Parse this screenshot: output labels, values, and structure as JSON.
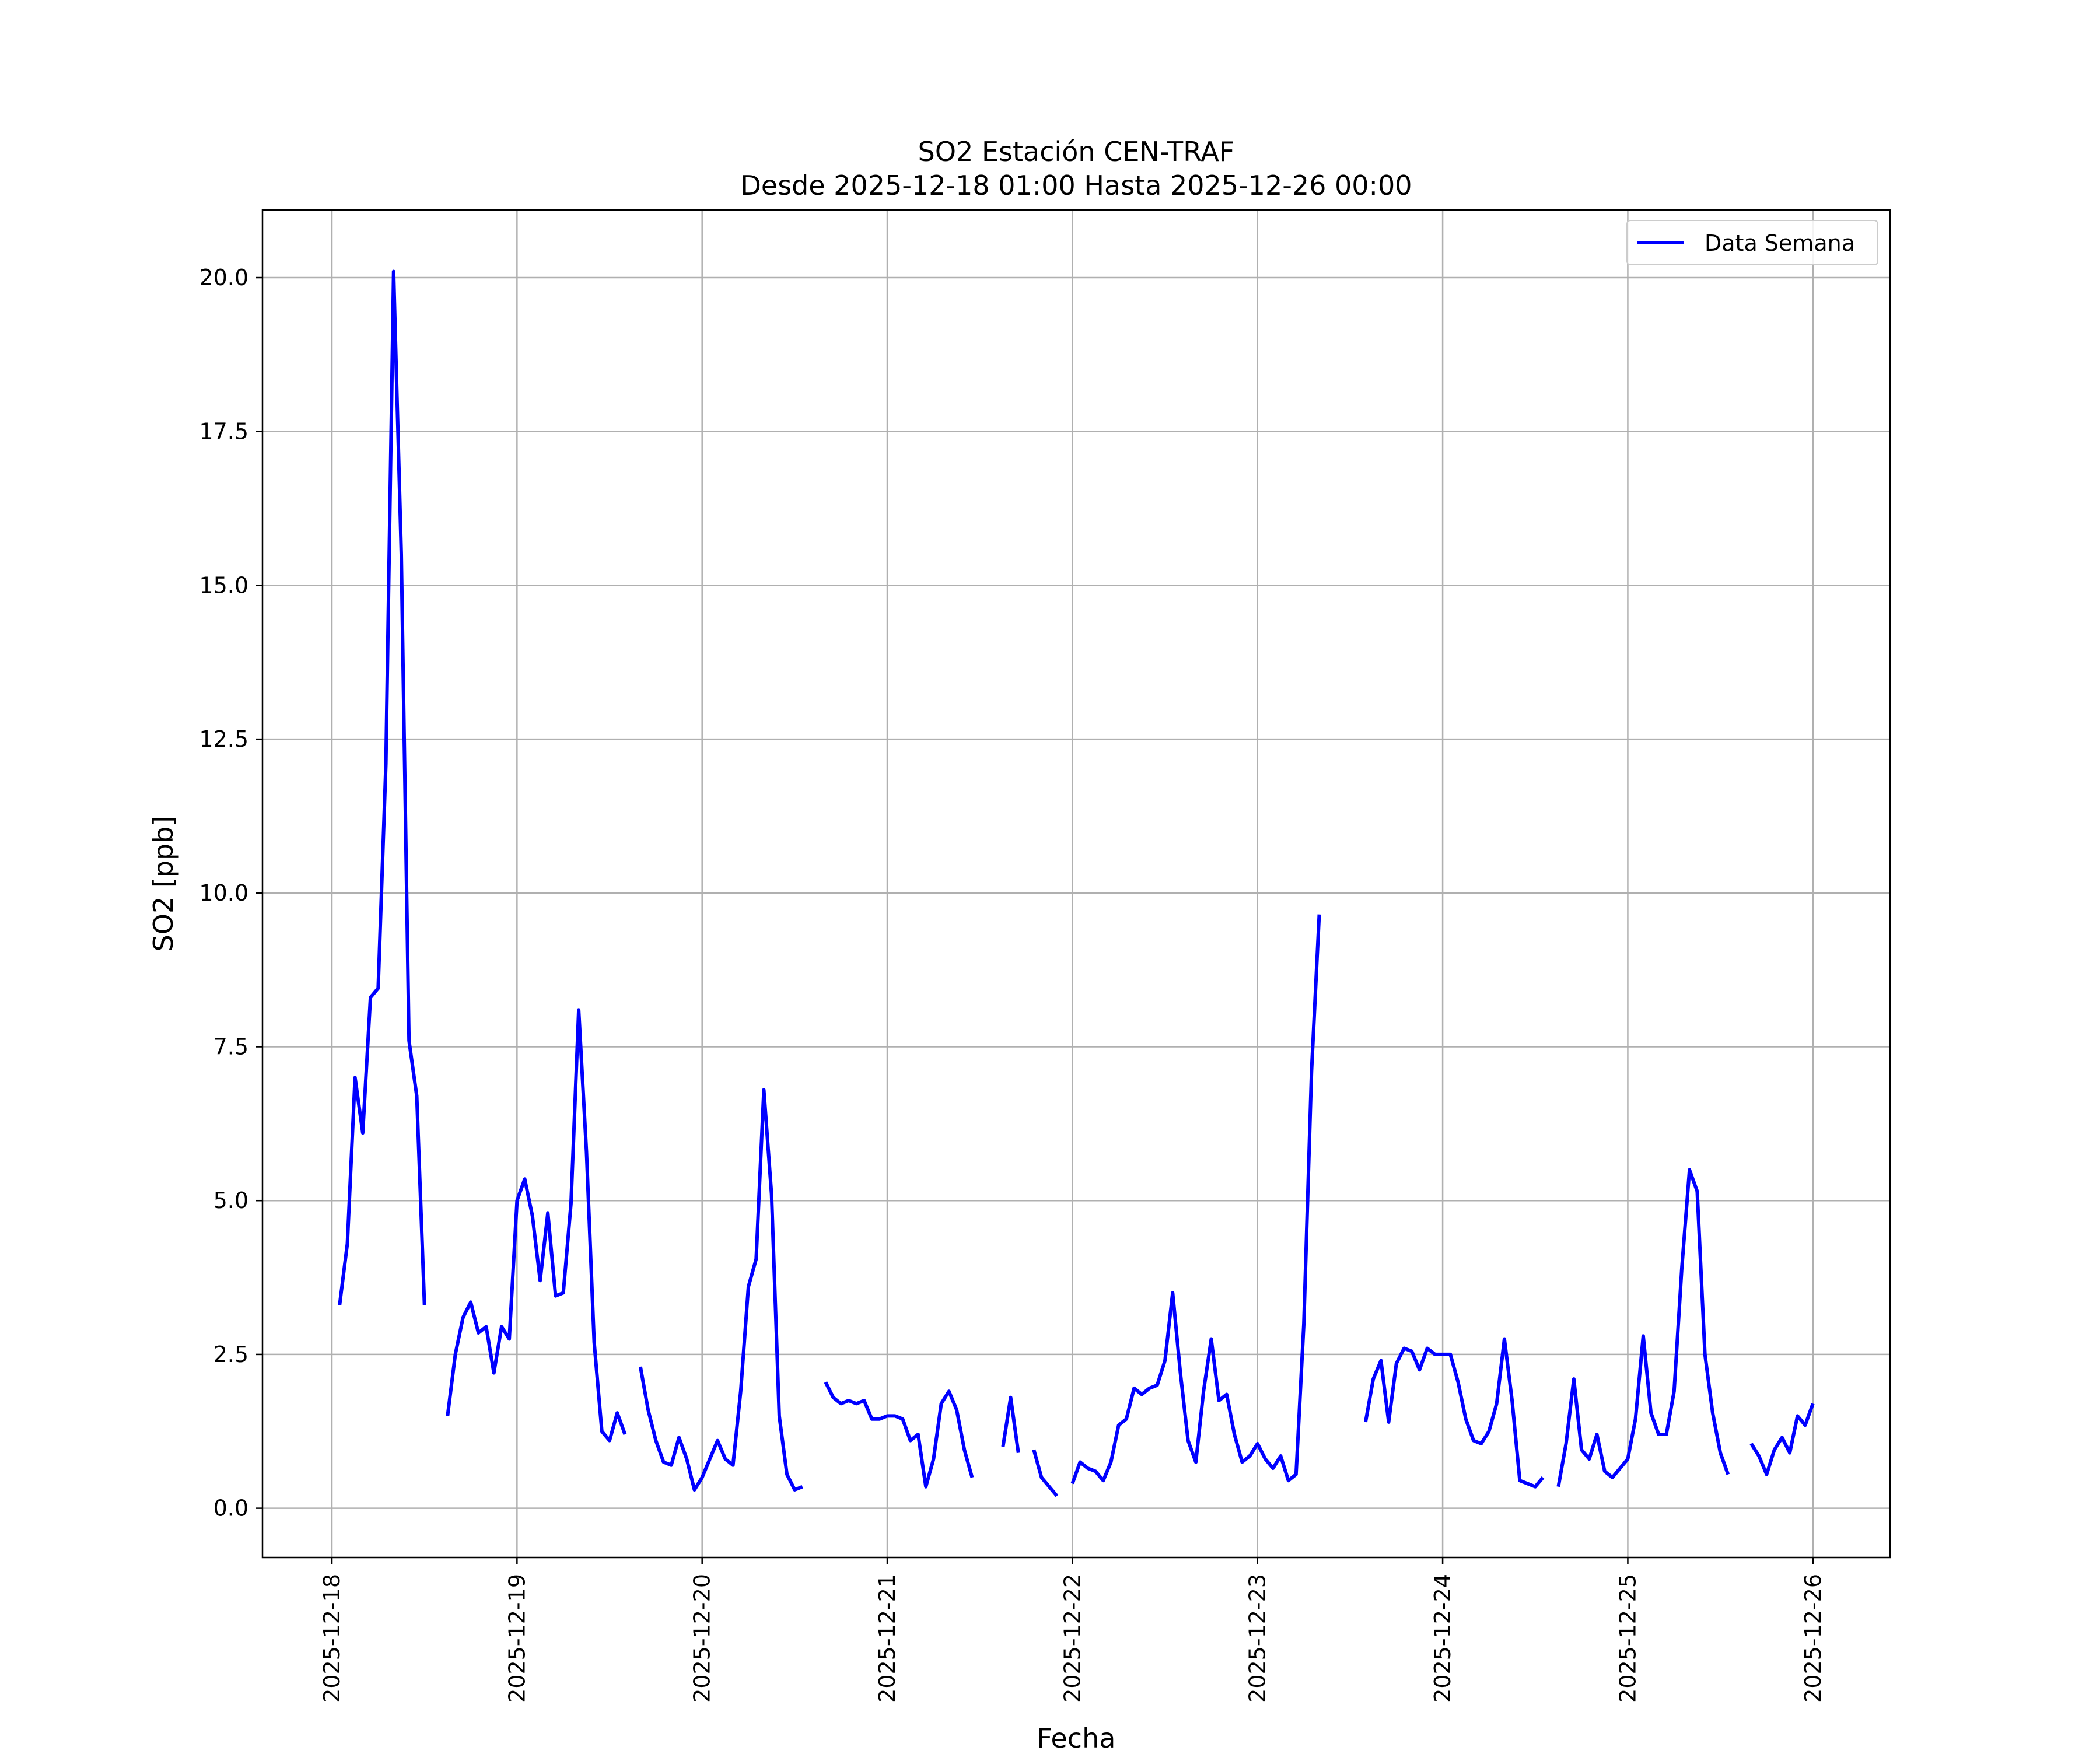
{
  "chart_data": {
    "type": "line",
    "title": "SO2 Estación CEN-TRAF",
    "subtitle": "Desde 2025-12-18 01:00 Hasta 2025-12-26 00:00",
    "xlabel": "Fecha",
    "ylabel": "SO2 [ppb]",
    "ylim": [
      -0.8,
      21.1
    ],
    "xlim": [
      "2025-12-17 15:00",
      "2025-12-26 10:00"
    ],
    "yticks": [
      "0.0",
      "2.5",
      "5.0",
      "7.5",
      "10.0",
      "12.5",
      "15.0",
      "17.5",
      "20.0"
    ],
    "xticks": [
      "2025-12-18",
      "2025-12-19",
      "2025-12-20",
      "2025-12-21",
      "2025-12-22",
      "2025-12-23",
      "2025-12-24",
      "2025-12-25",
      "2025-12-26"
    ],
    "grid": true,
    "legend_position": "upper right",
    "colors": {
      "line": "#0000ff",
      "grid": "#b0b0b0"
    },
    "series": [
      {
        "name": "Data Semana",
        "segments": [
          [
            [
              "2025-12-18 01:00",
              3.3
            ],
            [
              "2025-12-18 02:00",
              4.3
            ],
            [
              "2025-12-18 03:00",
              7.0
            ],
            [
              "2025-12-18 04:00",
              6.1
            ],
            [
              "2025-12-18 05:00",
              8.3
            ],
            [
              "2025-12-18 06:00",
              8.45
            ],
            [
              "2025-12-18 07:00",
              12.1
            ],
            [
              "2025-12-18 08:00",
              20.1
            ],
            [
              "2025-12-18 09:00",
              15.5
            ],
            [
              "2025-12-18 10:00",
              7.6
            ],
            [
              "2025-12-18 11:00",
              6.7
            ],
            [
              "2025-12-18 12:00",
              3.3
            ]
          ],
          [
            [
              "2025-12-18 15:00",
              1.5
            ],
            [
              "2025-12-18 16:00",
              2.5
            ],
            [
              "2025-12-18 17:00",
              3.1
            ],
            [
              "2025-12-18 18:00",
              3.35
            ],
            [
              "2025-12-18 19:00",
              2.85
            ],
            [
              "2025-12-18 20:00",
              2.95
            ],
            [
              "2025-12-18 21:00",
              2.2
            ],
            [
              "2025-12-18 22:00",
              2.95
            ],
            [
              "2025-12-18 23:00",
              2.75
            ],
            [
              "2025-12-19 00:00",
              5.0
            ],
            [
              "2025-12-19 01:00",
              5.35
            ],
            [
              "2025-12-19 02:00",
              4.75
            ],
            [
              "2025-12-19 03:00",
              3.7
            ],
            [
              "2025-12-19 04:00",
              4.8
            ],
            [
              "2025-12-19 05:00",
              3.45
            ],
            [
              "2025-12-19 06:00",
              3.5
            ],
            [
              "2025-12-19 07:00",
              4.95
            ],
            [
              "2025-12-19 08:00",
              8.1
            ],
            [
              "2025-12-19 09:00",
              5.8
            ],
            [
              "2025-12-19 10:00",
              2.7
            ],
            [
              "2025-12-19 11:00",
              1.25
            ],
            [
              "2025-12-19 12:00",
              1.1
            ],
            [
              "2025-12-19 13:00",
              1.55
            ],
            [
              "2025-12-19 14:00",
              1.2
            ]
          ],
          [
            [
              "2025-12-19 16:00",
              2.3
            ],
            [
              "2025-12-19 17:00",
              1.6
            ],
            [
              "2025-12-19 18:00",
              1.1
            ],
            [
              "2025-12-19 19:00",
              0.75
            ],
            [
              "2025-12-19 20:00",
              0.7
            ],
            [
              "2025-12-19 21:00",
              1.15
            ],
            [
              "2025-12-19 22:00",
              0.8
            ],
            [
              "2025-12-19 23:00",
              0.3
            ],
            [
              "2025-12-20 00:00",
              0.5
            ],
            [
              "2025-12-20 01:00",
              0.8
            ],
            [
              "2025-12-20 02:00",
              1.1
            ],
            [
              "2025-12-20 03:00",
              0.8
            ],
            [
              "2025-12-20 04:00",
              0.7
            ],
            [
              "2025-12-20 05:00",
              1.9
            ],
            [
              "2025-12-20 06:00",
              3.6
            ],
            [
              "2025-12-20 07:00",
              4.05
            ],
            [
              "2025-12-20 08:00",
              6.8
            ],
            [
              "2025-12-20 09:00",
              5.1
            ],
            [
              "2025-12-20 10:00",
              1.5
            ],
            [
              "2025-12-20 11:00",
              0.55
            ],
            [
              "2025-12-20 12:00",
              0.3
            ],
            [
              "2025-12-20 13:00",
              0.35
            ]
          ],
          [
            [
              "2025-12-20 16:00",
              2.05
            ],
            [
              "2025-12-20 17:00",
              1.8
            ],
            [
              "2025-12-20 18:00",
              1.7
            ],
            [
              "2025-12-20 19:00",
              1.75
            ],
            [
              "2025-12-20 20:00",
              1.7
            ],
            [
              "2025-12-20 21:00",
              1.75
            ],
            [
              "2025-12-20 22:00",
              1.45
            ],
            [
              "2025-12-20 23:00",
              1.45
            ],
            [
              "2025-12-21 00:00",
              1.5
            ],
            [
              "2025-12-21 01:00",
              1.5
            ],
            [
              "2025-12-21 02:00",
              1.45
            ],
            [
              "2025-12-21 03:00",
              1.1
            ],
            [
              "2025-12-21 04:00",
              1.2
            ],
            [
              "2025-12-21 05:00",
              0.35
            ],
            [
              "2025-12-21 06:00",
              0.8
            ],
            [
              "2025-12-21 07:00",
              1.7
            ],
            [
              "2025-12-21 08:00",
              1.9
            ],
            [
              "2025-12-21 09:00",
              1.6
            ],
            [
              "2025-12-21 10:00",
              0.95
            ],
            [
              "2025-12-21 11:00",
              0.5
            ]
          ],
          [
            [
              "2025-12-21 15:00",
              1.0
            ],
            [
              "2025-12-21 16:00",
              1.8
            ],
            [
              "2025-12-21 17:00",
              0.9
            ]
          ],
          [
            [
              "2025-12-21 19:00",
              0.95
            ],
            [
              "2025-12-21 20:00",
              0.5
            ],
            [
              "2025-12-21 21:00",
              0.35
            ],
            [
              "2025-12-21 22:00",
              0.2
            ]
          ],
          [
            [
              "2025-12-22 00:00",
              0.4
            ],
            [
              "2025-12-22 01:00",
              0.75
            ],
            [
              "2025-12-22 02:00",
              0.65
            ],
            [
              "2025-12-22 03:00",
              0.6
            ],
            [
              "2025-12-22 04:00",
              0.45
            ],
            [
              "2025-12-22 05:00",
              0.75
            ],
            [
              "2025-12-22 06:00",
              1.35
            ],
            [
              "2025-12-22 07:00",
              1.45
            ],
            [
              "2025-12-22 08:00",
              1.95
            ],
            [
              "2025-12-22 09:00",
              1.85
            ],
            [
              "2025-12-22 10:00",
              1.95
            ],
            [
              "2025-12-22 11:00",
              2.0
            ],
            [
              "2025-12-22 12:00",
              2.4
            ],
            [
              "2025-12-22 13:00",
              3.5
            ],
            [
              "2025-12-22 14:00",
              2.2
            ],
            [
              "2025-12-22 15:00",
              1.1
            ],
            [
              "2025-12-22 16:00",
              0.75
            ],
            [
              "2025-12-22 17:00",
              1.9
            ],
            [
              "2025-12-22 18:00",
              2.75
            ],
            [
              "2025-12-22 19:00",
              1.75
            ],
            [
              "2025-12-22 20:00",
              1.85
            ],
            [
              "2025-12-22 21:00",
              1.2
            ],
            [
              "2025-12-22 22:00",
              0.75
            ],
            [
              "2025-12-22 23:00",
              0.85
            ],
            [
              "2025-12-23 00:00",
              1.05
            ],
            [
              "2025-12-23 01:00",
              0.8
            ],
            [
              "2025-12-23 02:00",
              0.65
            ],
            [
              "2025-12-23 03:00",
              0.85
            ],
            [
              "2025-12-23 04:00",
              0.45
            ],
            [
              "2025-12-23 05:00",
              0.55
            ],
            [
              "2025-12-23 06:00",
              3.0
            ],
            [
              "2025-12-23 07:00",
              7.1
            ],
            [
              "2025-12-23 08:00",
              9.65
            ]
          ],
          [
            [
              "2025-12-23 14:00",
              1.4
            ],
            [
              "2025-12-23 15:00",
              2.1
            ],
            [
              "2025-12-23 16:00",
              2.4
            ],
            [
              "2025-12-23 17:00",
              1.4
            ],
            [
              "2025-12-23 18:00",
              2.35
            ],
            [
              "2025-12-23 19:00",
              2.6
            ],
            [
              "2025-12-23 20:00",
              2.55
            ],
            [
              "2025-12-23 21:00",
              2.25
            ],
            [
              "2025-12-23 22:00",
              2.6
            ],
            [
              "2025-12-23 23:00",
              2.5
            ],
            [
              "2025-12-24 00:00",
              2.5
            ],
            [
              "2025-12-24 01:00",
              2.5
            ],
            [
              "2025-12-24 02:00",
              2.05
            ],
            [
              "2025-12-24 03:00",
              1.45
            ],
            [
              "2025-12-24 04:00",
              1.1
            ],
            [
              "2025-12-24 05:00",
              1.05
            ],
            [
              "2025-12-24 06:00",
              1.25
            ],
            [
              "2025-12-24 07:00",
              1.7
            ],
            [
              "2025-12-24 08:00",
              2.75
            ],
            [
              "2025-12-24 09:00",
              1.75
            ],
            [
              "2025-12-24 10:00",
              0.45
            ],
            [
              "2025-12-24 11:00",
              0.4
            ],
            [
              "2025-12-24 12:00",
              0.35
            ],
            [
              "2025-12-24 13:00",
              0.5
            ]
          ],
          [
            [
              "2025-12-24 15:00",
              0.35
            ],
            [
              "2025-12-24 16:00",
              1.05
            ],
            [
              "2025-12-24 17:00",
              2.1
            ],
            [
              "2025-12-24 18:00",
              0.95
            ],
            [
              "2025-12-24 19:00",
              0.8
            ],
            [
              "2025-12-24 20:00",
              1.2
            ],
            [
              "2025-12-24 21:00",
              0.6
            ],
            [
              "2025-12-24 22:00",
              0.5
            ],
            [
              "2025-12-24 23:00",
              0.65
            ],
            [
              "2025-12-25 00:00",
              0.8
            ],
            [
              "2025-12-25 01:00",
              1.45
            ],
            [
              "2025-12-25 02:00",
              2.8
            ],
            [
              "2025-12-25 03:00",
              1.55
            ],
            [
              "2025-12-25 04:00",
              1.2
            ],
            [
              "2025-12-25 05:00",
              1.2
            ],
            [
              "2025-12-25 06:00",
              1.9
            ],
            [
              "2025-12-25 07:00",
              3.9
            ],
            [
              "2025-12-25 08:00",
              5.5
            ],
            [
              "2025-12-25 09:00",
              5.15
            ],
            [
              "2025-12-25 10:00",
              2.5
            ],
            [
              "2025-12-25 11:00",
              1.55
            ],
            [
              "2025-12-25 12:00",
              0.9
            ],
            [
              "2025-12-25 13:00",
              0.55
            ]
          ],
          [
            [
              "2025-12-25 16:00",
              1.05
            ],
            [
              "2025-12-25 17:00",
              0.85
            ],
            [
              "2025-12-25 18:00",
              0.55
            ],
            [
              "2025-12-25 19:00",
              0.95
            ],
            [
              "2025-12-25 20:00",
              1.15
            ],
            [
              "2025-12-25 21:00",
              0.9
            ],
            [
              "2025-12-25 22:00",
              1.5
            ],
            [
              "2025-12-25 23:00",
              1.35
            ],
            [
              "2025-12-26 00:00",
              1.7
            ]
          ]
        ]
      }
    ]
  }
}
